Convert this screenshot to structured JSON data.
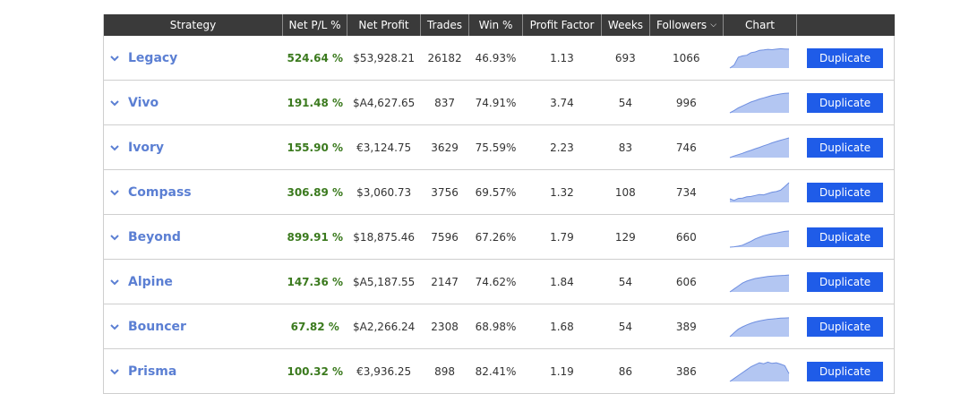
{
  "header": {
    "strategy": "Strategy",
    "net_pl_pct": "Net P/L %",
    "net_profit": "Net Profit",
    "trades": "Trades",
    "win_pct": "Win %",
    "profit_factor": "Profit Factor",
    "weeks": "Weeks",
    "followers": "Followers",
    "chart": "Chart",
    "actions": ""
  },
  "colors": {
    "header_bg": "#3a3a3a",
    "strategy_name": "#5b7fd3",
    "positive_pl": "#3b7a1e",
    "duplicate_button": "#1f5ce8",
    "sparkline_fill": "#b3c6f2",
    "sparkline_stroke": "#6f8fe0"
  },
  "rows": [
    {
      "name": "Legacy",
      "pl": "524.64 %",
      "profit": "$53,928.21",
      "trades": "26182",
      "win": "46.93%",
      "pf": "1.13",
      "weeks": "693",
      "followers": "1066",
      "action": "Duplicate",
      "spark": [
        0,
        0.15,
        0.55,
        0.62,
        0.65,
        0.78,
        0.82,
        0.9,
        0.92,
        0.95,
        0.93,
        0.96,
        0.98,
        0.97,
        0.96
      ]
    },
    {
      "name": "Vivo",
      "pl": "191.48 %",
      "profit": "$A4,627.65",
      "trades": "837",
      "win": "74.91%",
      "pf": "3.74",
      "weeks": "54",
      "followers": "996",
      "action": "Duplicate",
      "spark": [
        0,
        0.12,
        0.25,
        0.35,
        0.45,
        0.55,
        0.62,
        0.7,
        0.76,
        0.82,
        0.88,
        0.92,
        0.96,
        0.99,
        1
      ]
    },
    {
      "name": "Ivory",
      "pl": "155.90 %",
      "profit": "€3,124.75",
      "trades": "3629",
      "win": "75.59%",
      "pf": "2.23",
      "weeks": "83",
      "followers": "746",
      "action": "Duplicate",
      "spark": [
        0,
        0.08,
        0.15,
        0.22,
        0.3,
        0.37,
        0.45,
        0.52,
        0.6,
        0.67,
        0.75,
        0.82,
        0.88,
        0.94,
        1
      ]
    },
    {
      "name": "Compass",
      "pl": "306.89 %",
      "profit": "$3,060.73",
      "trades": "3756",
      "win": "69.57%",
      "pf": "1.32",
      "weeks": "108",
      "followers": "734",
      "action": "Duplicate",
      "spark": [
        0.18,
        0.1,
        0.2,
        0.22,
        0.28,
        0.3,
        0.35,
        0.4,
        0.38,
        0.45,
        0.52,
        0.55,
        0.62,
        0.8,
        1
      ]
    },
    {
      "name": "Beyond",
      "pl": "899.91 %",
      "profit": "$18,875.46",
      "trades": "7596",
      "win": "67.26%",
      "pf": "1.79",
      "weeks": "129",
      "followers": "660",
      "action": "Duplicate",
      "spark": [
        0,
        0.02,
        0.05,
        0.1,
        0.2,
        0.3,
        0.42,
        0.5,
        0.58,
        0.63,
        0.68,
        0.72,
        0.76,
        0.8,
        0.82
      ]
    },
    {
      "name": "Alpine",
      "pl": "147.36 %",
      "profit": "$A5,187.55",
      "trades": "2147",
      "win": "74.62%",
      "pf": "1.84",
      "weeks": "54",
      "followers": "606",
      "action": "Duplicate",
      "spark": [
        0,
        0.15,
        0.3,
        0.45,
        0.55,
        0.62,
        0.68,
        0.72,
        0.75,
        0.78,
        0.8,
        0.82,
        0.83,
        0.84,
        0.86
      ]
    },
    {
      "name": "Bouncer",
      "pl": "67.82 %",
      "profit": "$A2,266.24",
      "trades": "2308",
      "win": "68.98%",
      "pf": "1.68",
      "weeks": "54",
      "followers": "389",
      "action": "Duplicate",
      "spark": [
        0,
        0.2,
        0.38,
        0.5,
        0.6,
        0.68,
        0.75,
        0.8,
        0.84,
        0.88,
        0.9,
        0.92,
        0.94,
        0.95,
        0.96
      ]
    },
    {
      "name": "Prisma",
      "pl": "100.32 %",
      "profit": "€3,936.25",
      "trades": "898",
      "win": "82.41%",
      "pf": "1.19",
      "weeks": "86",
      "followers": "386",
      "action": "Duplicate",
      "spark": [
        0,
        0.15,
        0.3,
        0.45,
        0.6,
        0.75,
        0.85,
        0.95,
        0.9,
        0.98,
        0.92,
        0.95,
        0.88,
        0.8,
        0.4
      ]
    }
  ]
}
